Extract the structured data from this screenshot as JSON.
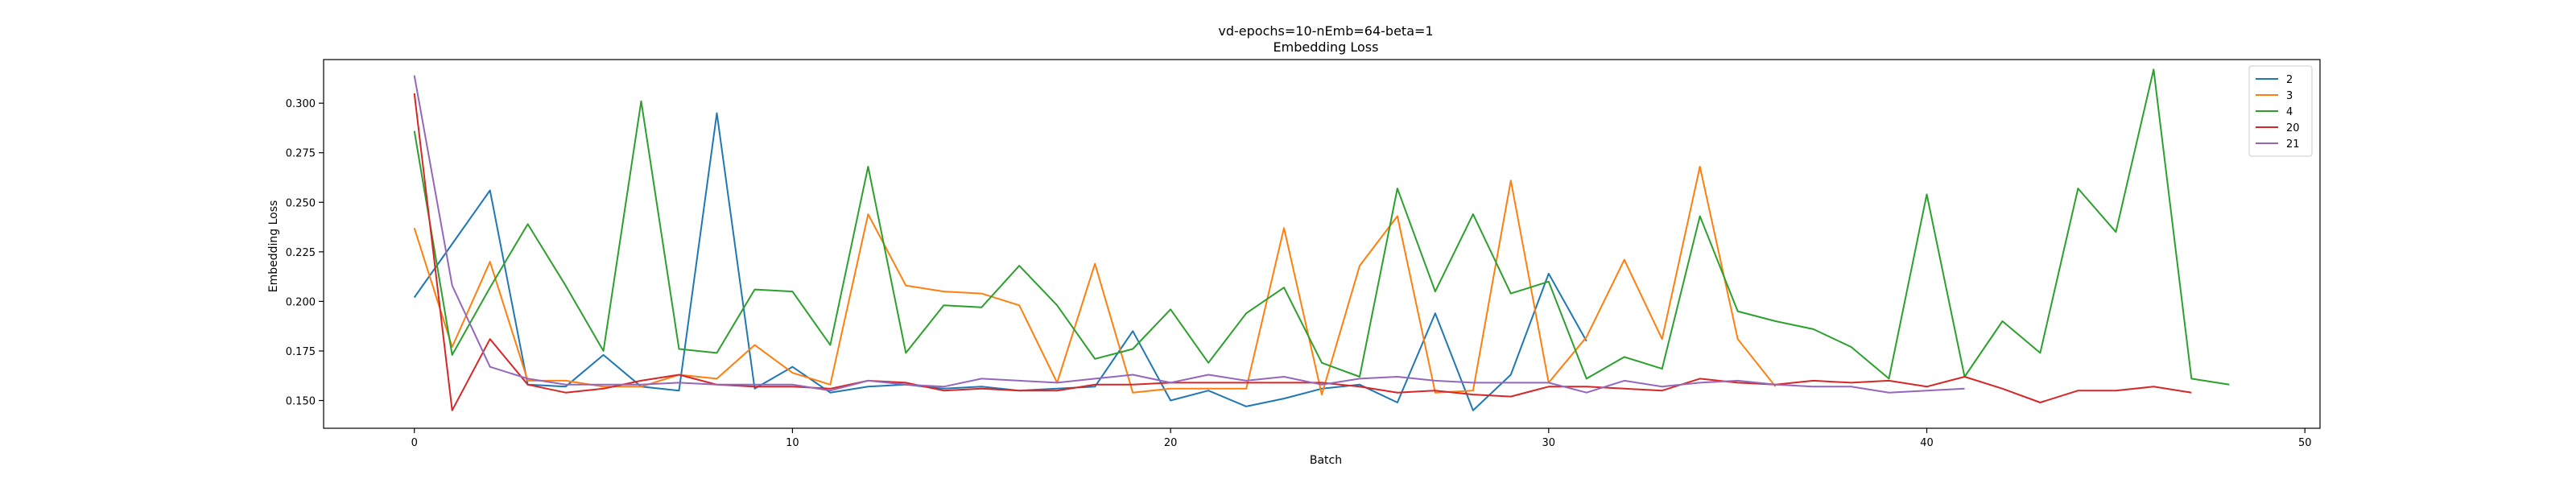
{
  "chart_data": {
    "type": "line",
    "title": "vd-epochs=10-nEmb=64-beta=1",
    "subtitle": "Embedding Loss",
    "xlabel": "Batch",
    "ylabel": "Embedding Loss",
    "xlim": [
      -2.4,
      50.4
    ],
    "ylim": [
      0.136,
      0.322
    ],
    "x_ticks": [
      0,
      10,
      20,
      30,
      40,
      50
    ],
    "x_tick_labels": [
      "0",
      "10",
      "20",
      "30",
      "40",
      "50"
    ],
    "y_ticks": [
      0.15,
      0.175,
      0.2,
      0.225,
      0.25,
      0.275,
      0.3
    ],
    "y_tick_labels": [
      "0.150",
      "0.175",
      "0.200",
      "0.225",
      "0.250",
      "0.275",
      "0.300"
    ],
    "grid": false,
    "legend_position": "top-right",
    "series": [
      {
        "name": "2",
        "color": "#1f77b4",
        "values": [
          0.202,
          0.229,
          0.256,
          0.158,
          0.157,
          0.173,
          0.157,
          0.155,
          0.295,
          0.156,
          0.167,
          0.154,
          0.157,
          0.158,
          0.156,
          0.157,
          0.155,
          0.156,
          0.157,
          0.185,
          0.15,
          0.155,
          0.147,
          0.151,
          0.156,
          0.158,
          0.149,
          0.194,
          0.145,
          0.163,
          0.214,
          0.18
        ]
      },
      {
        "name": "3",
        "color": "#ff7f0e",
        "values": [
          0.237,
          0.177,
          0.22,
          0.16,
          0.16,
          0.157,
          0.157,
          0.163,
          0.161,
          0.178,
          0.164,
          0.158,
          0.244,
          0.208,
          0.205,
          0.204,
          0.198,
          0.159,
          0.219,
          0.154,
          0.156,
          0.156,
          0.156,
          0.237,
          0.153,
          0.218,
          0.243,
          0.154,
          0.155,
          0.261,
          0.159,
          0.182,
          0.221,
          0.181,
          0.268,
          0.181,
          0.157
        ]
      },
      {
        "name": "4",
        "color": "#2ca02c",
        "values": [
          0.286,
          0.173,
          0.207,
          0.239,
          0.208,
          0.175,
          0.301,
          0.176,
          0.174,
          0.206,
          0.205,
          0.178,
          0.268,
          0.174,
          0.198,
          0.197,
          0.218,
          0.198,
          0.171,
          0.176,
          0.196,
          0.169,
          0.194,
          0.207,
          0.169,
          0.162,
          0.257,
          0.205,
          0.244,
          0.204,
          0.21,
          0.161,
          0.172,
          0.166,
          0.243,
          0.195,
          0.19,
          0.186,
          0.177,
          0.161,
          0.254,
          0.162,
          0.19,
          0.174,
          0.257,
          0.235,
          0.317,
          0.161,
          0.158
        ]
      },
      {
        "name": "20",
        "color": "#d62728",
        "values": [
          0.305,
          0.145,
          0.181,
          0.158,
          0.154,
          0.156,
          0.16,
          0.163,
          0.158,
          0.157,
          0.157,
          0.156,
          0.16,
          0.159,
          0.155,
          0.156,
          0.155,
          0.155,
          0.158,
          0.158,
          0.159,
          0.159,
          0.159,
          0.159,
          0.159,
          0.157,
          0.154,
          0.155,
          0.153,
          0.152,
          0.157,
          0.157,
          0.156,
          0.155,
          0.161,
          0.159,
          0.158,
          0.16,
          0.159,
          0.16,
          0.157,
          0.162,
          0.156,
          0.149,
          0.155,
          0.155,
          0.157,
          0.154
        ]
      },
      {
        "name": "21",
        "color": "#9467bd",
        "values": [
          0.314,
          0.208,
          0.167,
          0.161,
          0.158,
          0.158,
          0.158,
          0.159,
          0.158,
          0.158,
          0.158,
          0.155,
          0.16,
          0.158,
          0.157,
          0.161,
          0.16,
          0.159,
          0.161,
          0.163,
          0.159,
          0.163,
          0.16,
          0.162,
          0.158,
          0.161,
          0.162,
          0.16,
          0.159,
          0.159,
          0.159,
          0.154,
          0.16,
          0.157,
          0.159,
          0.16,
          0.158,
          0.157,
          0.157,
          0.154,
          0.155,
          0.156
        ]
      }
    ]
  }
}
